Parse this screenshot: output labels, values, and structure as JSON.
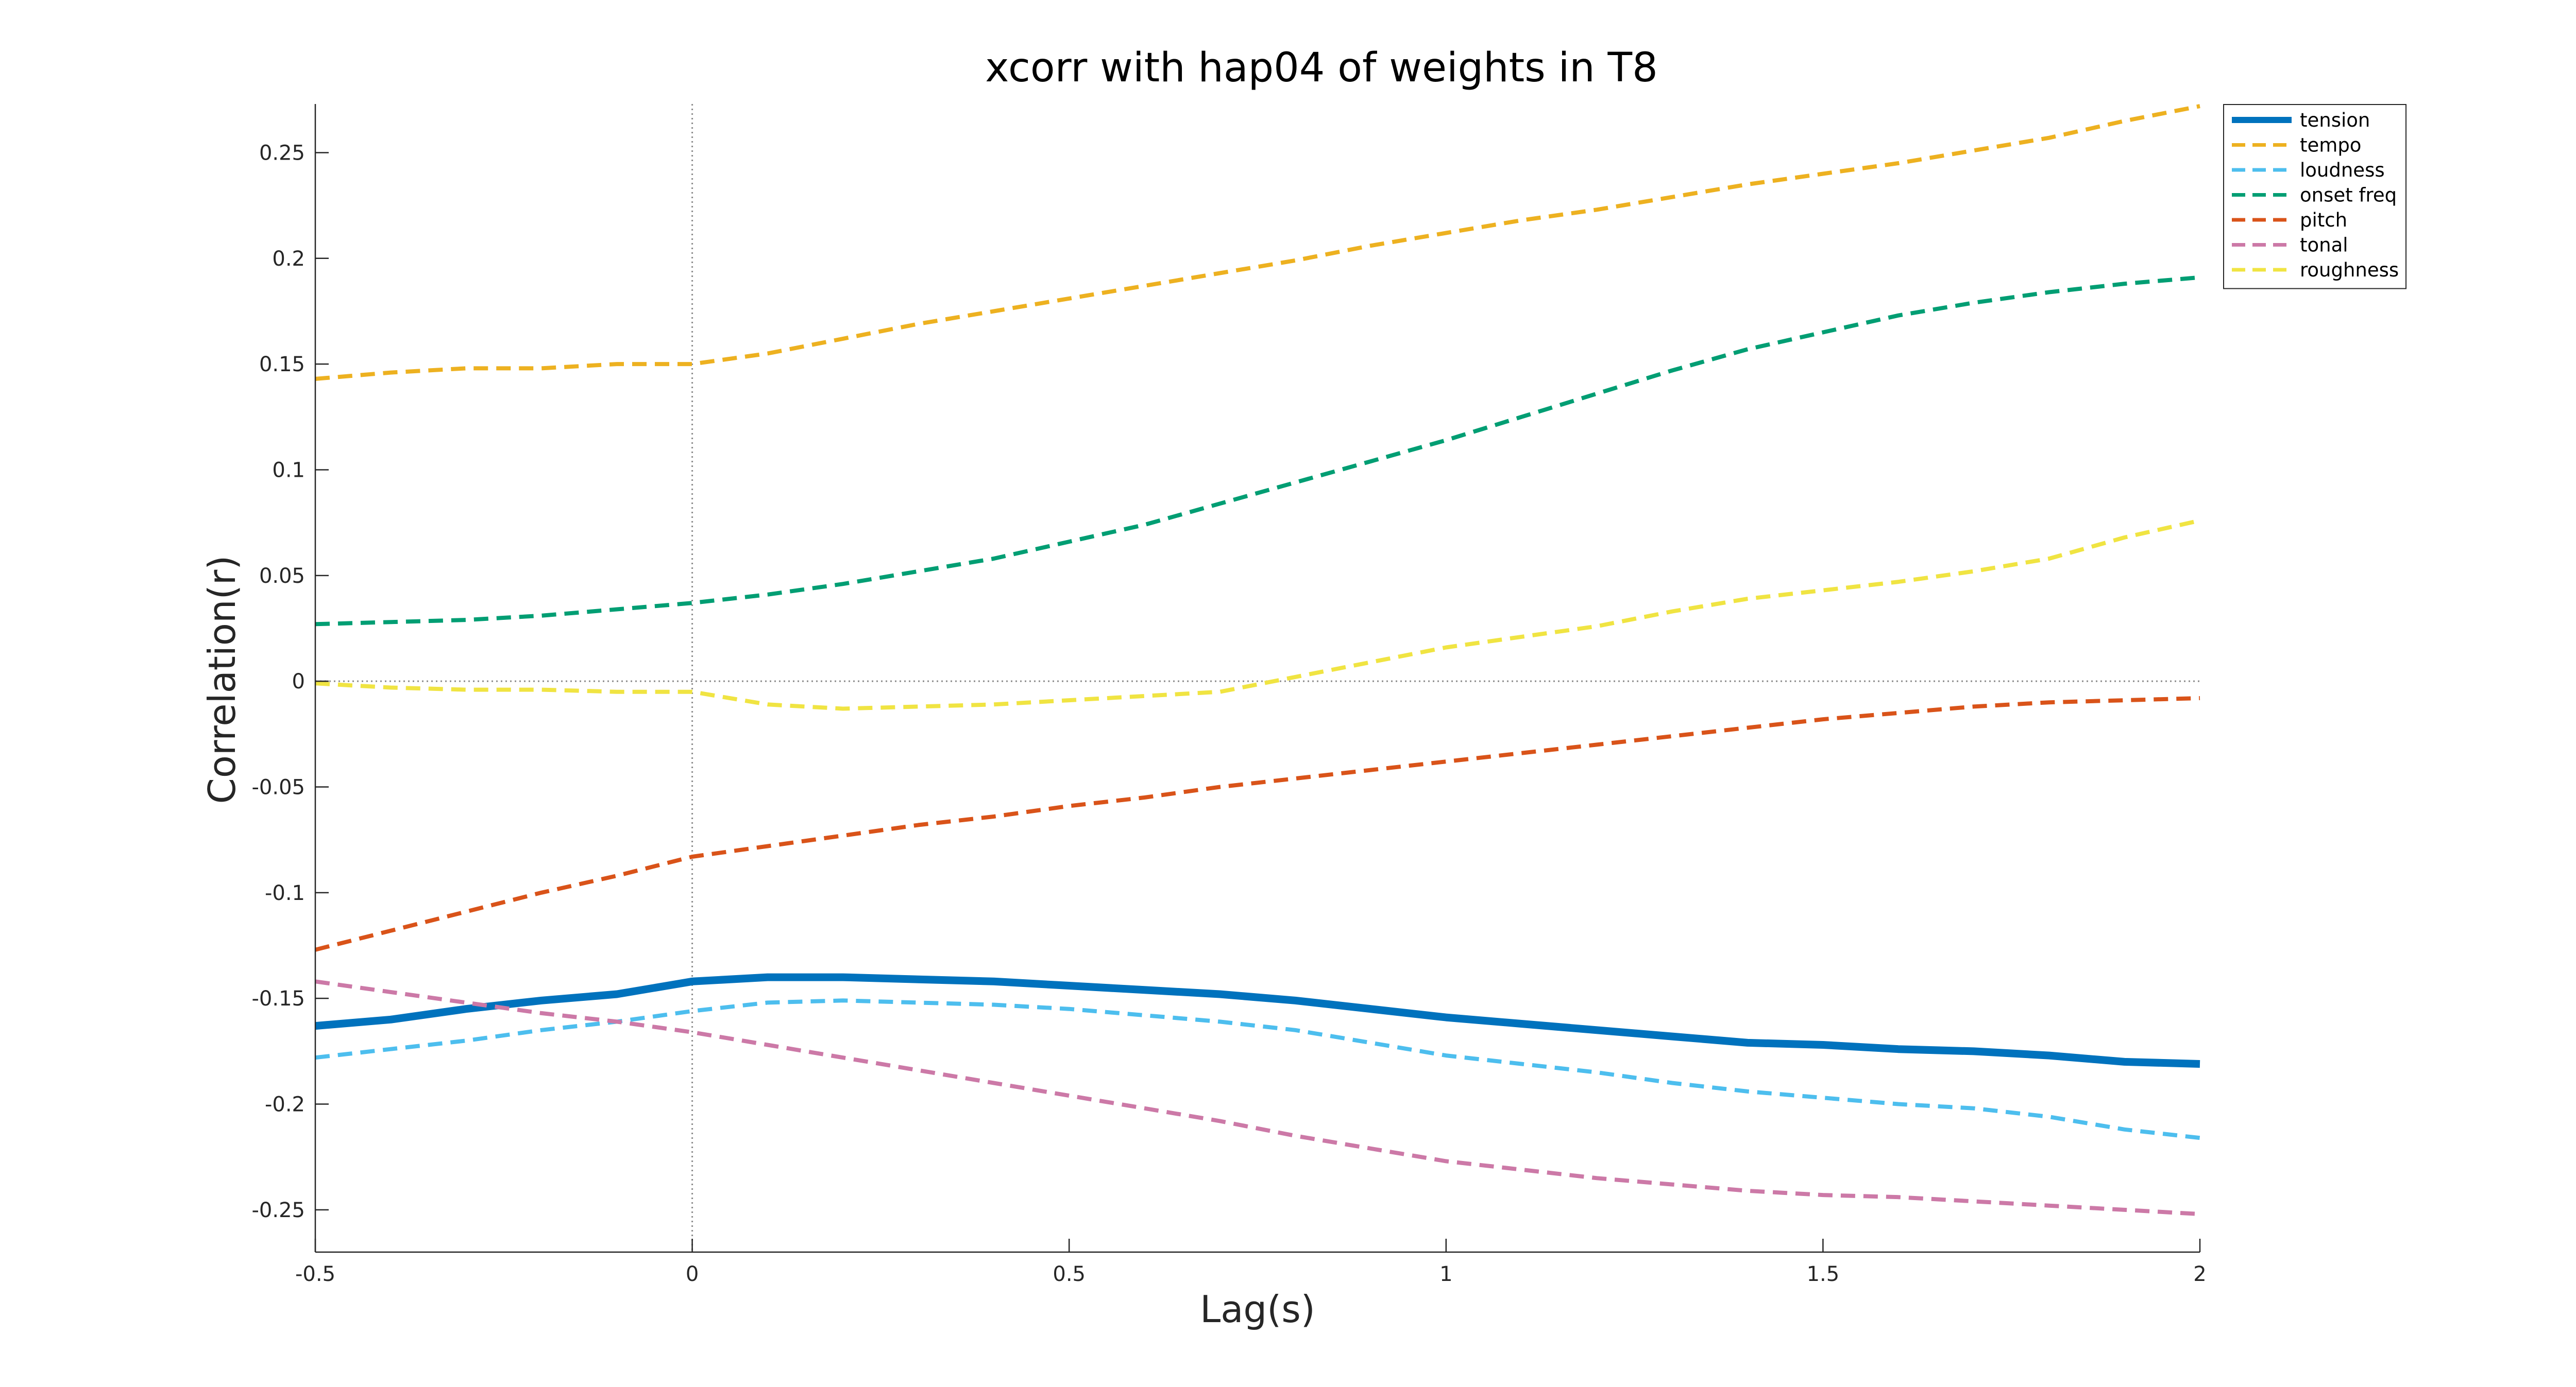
{
  "chart_data": {
    "type": "line",
    "title": "xcorr with hap04 of weights in T8",
    "xlabel": "Lag(s)",
    "ylabel": "Correlation(r)",
    "xlim": [
      -0.5,
      2
    ],
    "ylim": [
      -0.27,
      0.273
    ],
    "xticks": [
      -0.5,
      0,
      0.5,
      1,
      1.5,
      2
    ],
    "xtick_labels": [
      "-0.5",
      "0",
      "0.5",
      "1",
      "1.5",
      "2"
    ],
    "yticks": [
      0.25,
      0.2,
      0.15,
      0.1,
      0.05,
      0,
      -0.05,
      -0.1,
      -0.15,
      -0.2,
      -0.25
    ],
    "ytick_labels": [
      "0.25",
      "0.2",
      "0.15",
      "0.1",
      "0.05",
      "0",
      "-0.05",
      "-0.1",
      "-0.15",
      "-0.2",
      "-0.25"
    ],
    "grid": false,
    "reference_lines": {
      "x": 0,
      "y": 0
    },
    "legend_position": "top-right",
    "series": [
      {
        "name": "tension",
        "color": "#0072BD",
        "style": "solid",
        "x": [
          -0.5,
          -0.4,
          -0.3,
          -0.2,
          -0.1,
          0,
          0.1,
          0.2,
          0.3,
          0.4,
          0.5,
          0.6,
          0.7,
          0.8,
          0.9,
          1.0,
          1.1,
          1.2,
          1.3,
          1.4,
          1.5,
          1.6,
          1.7,
          1.8,
          1.9,
          2.0
        ],
        "values": [
          -0.163,
          -0.16,
          -0.155,
          -0.151,
          -0.148,
          -0.142,
          -0.14,
          -0.14,
          -0.141,
          -0.142,
          -0.144,
          -0.146,
          -0.148,
          -0.151,
          -0.155,
          -0.159,
          -0.162,
          -0.165,
          -0.168,
          -0.171,
          -0.172,
          -0.174,
          -0.175,
          -0.177,
          -0.18,
          -0.181
        ]
      },
      {
        "name": "tempo",
        "color": "#EDB120",
        "style": "dashed",
        "x": [
          -0.5,
          -0.4,
          -0.3,
          -0.2,
          -0.1,
          0,
          0.1,
          0.2,
          0.3,
          0.4,
          0.5,
          0.6,
          0.7,
          0.8,
          0.9,
          1.0,
          1.1,
          1.2,
          1.3,
          1.4,
          1.5,
          1.6,
          1.7,
          1.8,
          1.9,
          2.0
        ],
        "values": [
          0.143,
          0.146,
          0.148,
          0.148,
          0.15,
          0.15,
          0.155,
          0.162,
          0.169,
          0.175,
          0.181,
          0.187,
          0.193,
          0.199,
          0.206,
          0.212,
          0.218,
          0.223,
          0.229,
          0.235,
          0.24,
          0.245,
          0.251,
          0.257,
          0.265,
          0.272
        ]
      },
      {
        "name": "loudness",
        "color": "#4DBEEE",
        "style": "dashed",
        "x": [
          -0.5,
          -0.4,
          -0.3,
          -0.2,
          -0.1,
          0,
          0.1,
          0.2,
          0.3,
          0.4,
          0.5,
          0.6,
          0.7,
          0.8,
          0.9,
          1.0,
          1.1,
          1.2,
          1.3,
          1.4,
          1.5,
          1.6,
          1.7,
          1.8,
          1.9,
          2.0
        ],
        "values": [
          -0.178,
          -0.174,
          -0.17,
          -0.165,
          -0.161,
          -0.156,
          -0.152,
          -0.151,
          -0.152,
          -0.153,
          -0.155,
          -0.158,
          -0.161,
          -0.165,
          -0.171,
          -0.177,
          -0.181,
          -0.185,
          -0.19,
          -0.194,
          -0.197,
          -0.2,
          -0.202,
          -0.206,
          -0.212,
          -0.216
        ]
      },
      {
        "name": "onset freq",
        "color": "#009E73",
        "style": "dashed",
        "x": [
          -0.5,
          -0.4,
          -0.3,
          -0.2,
          -0.1,
          0,
          0.1,
          0.2,
          0.3,
          0.4,
          0.5,
          0.6,
          0.7,
          0.8,
          0.9,
          1.0,
          1.1,
          1.2,
          1.3,
          1.4,
          1.5,
          1.6,
          1.7,
          1.8,
          1.9,
          2.0
        ],
        "values": [
          0.027,
          0.028,
          0.029,
          0.031,
          0.034,
          0.037,
          0.041,
          0.046,
          0.052,
          0.058,
          0.066,
          0.074,
          0.084,
          0.094,
          0.104,
          0.114,
          0.125,
          0.136,
          0.147,
          0.157,
          0.165,
          0.173,
          0.179,
          0.184,
          0.188,
          0.191
        ]
      },
      {
        "name": "pitch",
        "color": "#D95319",
        "style": "dashed",
        "x": [
          -0.5,
          -0.4,
          -0.3,
          -0.2,
          -0.1,
          0,
          0.1,
          0.2,
          0.3,
          0.4,
          0.5,
          0.6,
          0.7,
          0.8,
          0.9,
          1.0,
          1.1,
          1.2,
          1.3,
          1.4,
          1.5,
          1.6,
          1.7,
          1.8,
          1.9,
          2.0
        ],
        "values": [
          -0.127,
          -0.118,
          -0.109,
          -0.1,
          -0.092,
          -0.083,
          -0.078,
          -0.073,
          -0.068,
          -0.064,
          -0.059,
          -0.055,
          -0.05,
          -0.046,
          -0.042,
          -0.038,
          -0.034,
          -0.03,
          -0.026,
          -0.022,
          -0.018,
          -0.015,
          -0.012,
          -0.01,
          -0.009,
          -0.008
        ]
      },
      {
        "name": "tonal",
        "color": "#CC79A7",
        "style": "dashed",
        "x": [
          -0.5,
          -0.4,
          -0.3,
          -0.2,
          -0.1,
          0,
          0.1,
          0.2,
          0.3,
          0.4,
          0.5,
          0.6,
          0.7,
          0.8,
          0.9,
          1.0,
          1.1,
          1.2,
          1.3,
          1.4,
          1.5,
          1.6,
          1.7,
          1.8,
          1.9,
          2.0
        ],
        "values": [
          -0.142,
          -0.147,
          -0.152,
          -0.157,
          -0.161,
          -0.166,
          -0.172,
          -0.178,
          -0.184,
          -0.19,
          -0.196,
          -0.202,
          -0.208,
          -0.215,
          -0.221,
          -0.227,
          -0.231,
          -0.235,
          -0.238,
          -0.241,
          -0.243,
          -0.244,
          -0.246,
          -0.248,
          -0.25,
          -0.252
        ]
      },
      {
        "name": "roughness",
        "color": "#F0E442",
        "style": "dashed",
        "x": [
          -0.5,
          -0.4,
          -0.3,
          -0.2,
          -0.1,
          0,
          0.1,
          0.2,
          0.3,
          0.4,
          0.5,
          0.6,
          0.7,
          0.8,
          0.9,
          1.0,
          1.1,
          1.2,
          1.3,
          1.4,
          1.5,
          1.6,
          1.7,
          1.8,
          1.9,
          2.0
        ],
        "values": [
          -0.001,
          -0.003,
          -0.004,
          -0.004,
          -0.005,
          -0.005,
          -0.011,
          -0.013,
          -0.012,
          -0.011,
          -0.009,
          -0.007,
          -0.005,
          0.002,
          0.009,
          0.016,
          0.021,
          0.026,
          0.033,
          0.039,
          0.043,
          0.047,
          0.052,
          0.058,
          0.068,
          0.076
        ]
      }
    ]
  }
}
